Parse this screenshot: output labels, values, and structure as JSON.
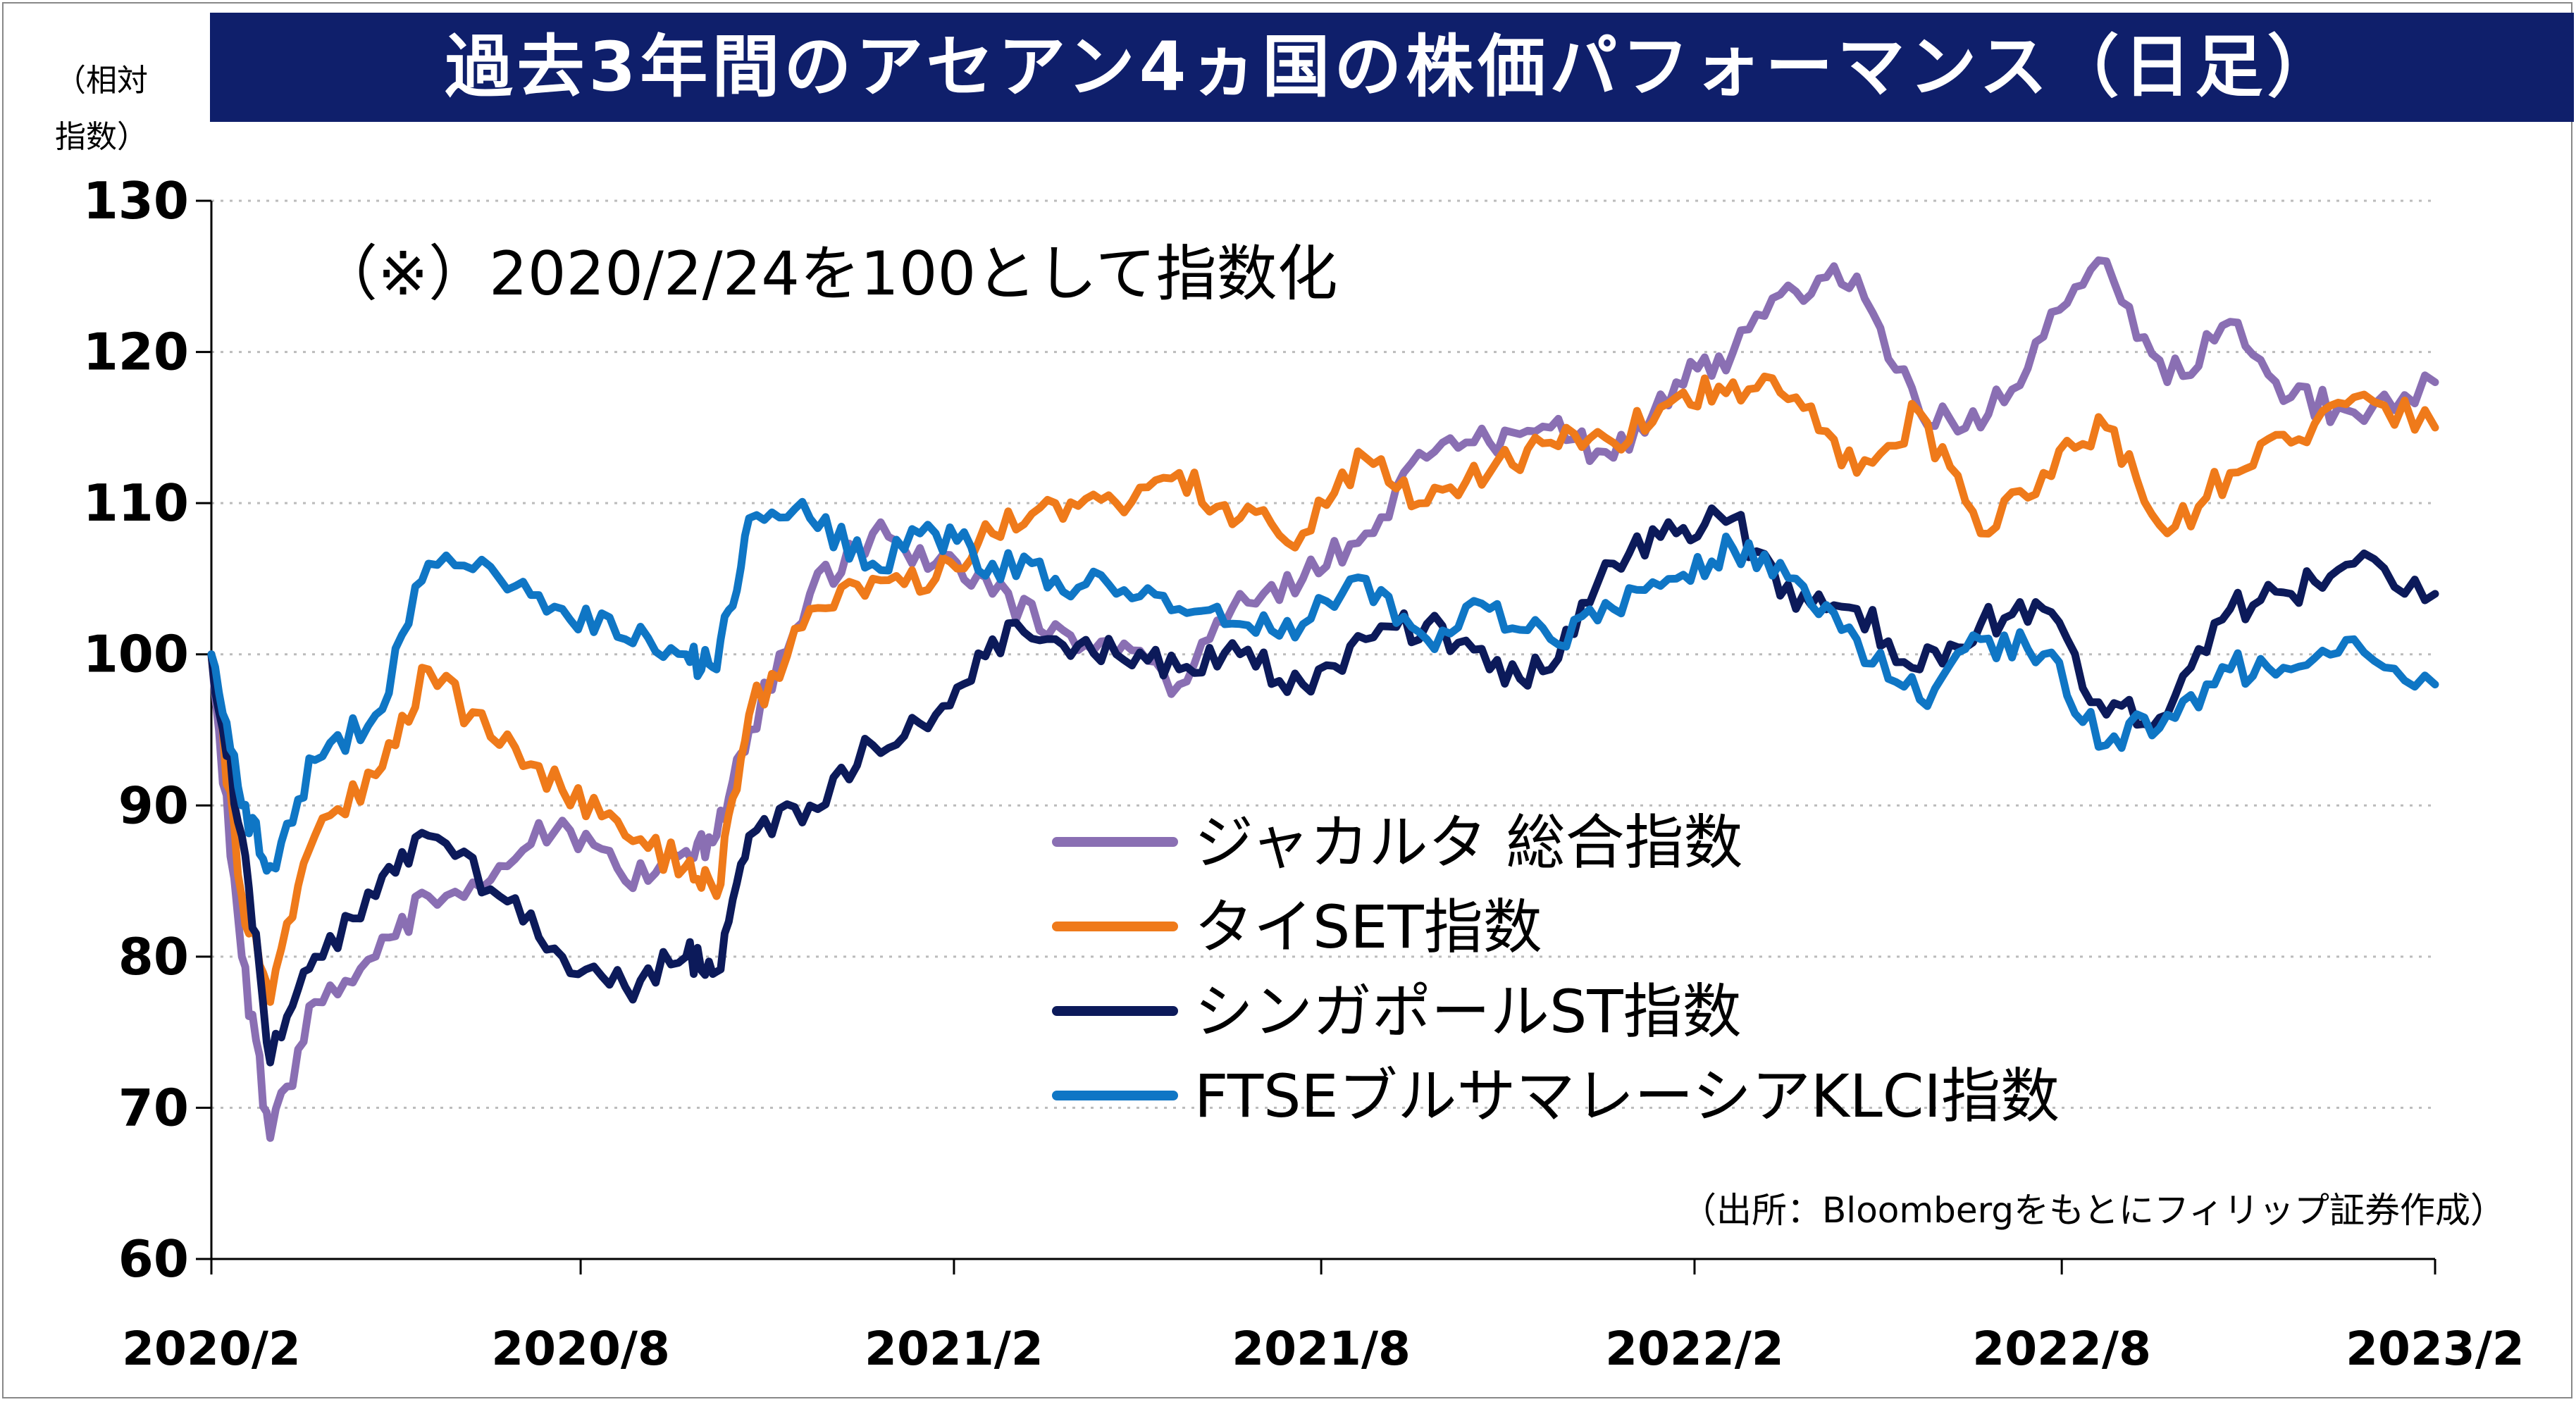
{
  "title": "過去3年間のアセアン4ヵ国の株価パフォーマンス（日足）",
  "ylabel_line1": "（相対",
  "ylabel_line2": "指数）",
  "note": "（※）2020/2/24を100として指数化",
  "source": "（出所：Bloombergをもとにフィリップ証券作成）",
  "colors": {
    "title_bg": "#0f1f6b",
    "grid": "#bbbbbb",
    "axis": "#000000"
  },
  "chart_data": {
    "type": "line",
    "title": "過去3年間のアセアン4ヵ国の株価パフォーマンス（日足）",
    "ylabel": "（相対指数）",
    "xlabel": "",
    "ylim": [
      60,
      130
    ],
    "xlim": [
      "2020/2",
      "2023/2"
    ],
    "yticks": [
      60,
      70,
      80,
      90,
      100,
      110,
      120,
      130
    ],
    "xticks": [
      "2020/2",
      "2020/8",
      "2021/2",
      "2021/8",
      "2022/2",
      "2022/8",
      "2023/2"
    ],
    "grid": "horizontal-dotted",
    "legend_position": "center-right",
    "x": [
      "2020-02-24",
      "2020-03-10",
      "2020-03-24",
      "2020-04-15",
      "2020-05-15",
      "2020-06-10",
      "2020-07-15",
      "2020-08-15",
      "2020-09-15",
      "2020-10-15",
      "2020-10-30",
      "2020-11-15",
      "2020-12-15",
      "2021-01-15",
      "2021-02-15",
      "2021-03-15",
      "2021-04-15",
      "2021-05-15",
      "2021-06-15",
      "2021-07-15",
      "2021-08-15",
      "2021-09-15",
      "2021-10-15",
      "2021-11-15",
      "2021-12-15",
      "2022-01-15",
      "2022-02-15",
      "2022-03-15",
      "2022-04-15",
      "2022-05-15",
      "2022-06-15",
      "2022-07-15",
      "2022-08-15",
      "2022-09-15",
      "2022-10-15",
      "2022-11-15",
      "2022-12-15",
      "2023-01-15",
      "2023-02-24"
    ],
    "series": [
      {
        "name": "ジャカルタ 総合指数",
        "color": "#8a6fb3",
        "values": [
          100,
          80,
          68,
          77,
          80,
          84,
          86,
          89,
          85,
          87,
          88,
          95,
          104,
          108,
          106,
          104,
          102,
          100,
          98,
          104,
          105,
          108,
          113,
          114,
          115,
          113,
          118,
          120,
          124,
          125,
          116,
          115,
          121,
          126,
          118,
          122,
          117,
          116,
          118
        ]
      },
      {
        "name": "タイSET指数",
        "color": "#ef7a1a",
        "values": [
          100,
          84,
          77,
          88,
          92,
          99,
          94,
          91,
          88,
          86,
          84,
          96,
          103,
          105,
          105,
          108,
          110,
          110,
          112,
          109,
          108,
          113,
          110,
          112,
          114,
          114,
          117,
          118,
          117,
          112,
          116,
          108,
          112,
          115,
          108,
          112,
          114,
          117,
          115
        ]
      },
      {
        "name": "シンガポールST指数",
        "color": "#0c1a5a",
        "values": [
          100,
          88,
          73,
          80,
          84,
          88,
          84,
          80,
          78,
          80,
          79,
          88,
          90,
          94,
          96,
          101,
          101,
          100,
          99,
          100,
          98,
          101,
          102,
          99,
          99,
          106,
          108,
          109,
          103,
          103,
          99,
          102,
          103,
          96,
          96,
          103,
          104,
          106,
          104
        ]
      },
      {
        "name": "FTSEブルサマレーシアKLCI指数",
        "color": "#0f76c5",
        "values": [
          100,
          90,
          86,
          93,
          96,
          106,
          105,
          103,
          101,
          100,
          99,
          109,
          109,
          106,
          108,
          106,
          105,
          104,
          103,
          102,
          102,
          105,
          101,
          103,
          101,
          103,
          105,
          107,
          105,
          101,
          97,
          101,
          100,
          94,
          96,
          99,
          99,
          101,
          98
        ]
      }
    ]
  }
}
